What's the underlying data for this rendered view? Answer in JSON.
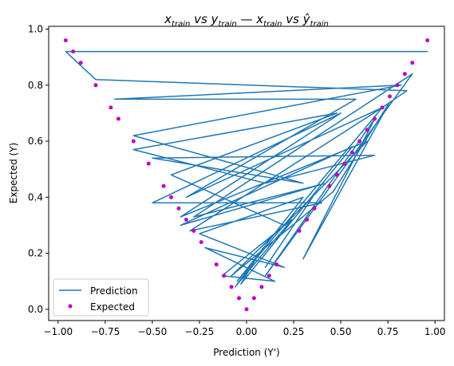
{
  "chart_data": {
    "type": "line",
    "title": {
      "base1": "x",
      "sub1": "train",
      "mid1": " vs y",
      "sub2": "train",
      "sep": "  —  ",
      "base3": "x",
      "sub3": "train",
      "mid2": " vs ",
      "yhat": "ŷ",
      "sub4": "train"
    },
    "xlabel": "Prediction (Y')",
    "ylabel": "Expected (Y)",
    "xlim": [
      -1.05,
      1.05
    ],
    "ylim": [
      -0.04,
      1.01
    ],
    "xticks": [
      -1.0,
      -0.75,
      -0.5,
      -0.25,
      0.0,
      0.25,
      0.5,
      0.75,
      1.0
    ],
    "xtick_labels": [
      "−1.00",
      "−0.75",
      "−0.50",
      "−0.25",
      "0.00",
      "0.25",
      "0.50",
      "0.75",
      "1.00"
    ],
    "yticks": [
      0.0,
      0.2,
      0.4,
      0.6,
      0.8,
      1.0
    ],
    "ytick_labels": [
      "0.0",
      "0.2",
      "0.4",
      "0.6",
      "0.8",
      "1.0"
    ],
    "legend": {
      "placement": "lower-left",
      "entries": [
        {
          "label": "Prediction",
          "kind": "line",
          "color": "#1f77b4"
        },
        {
          "label": "Expected",
          "kind": "marker",
          "color": "#bf00bf"
        }
      ]
    },
    "series": [
      {
        "name": "Prediction",
        "style": "line",
        "color": "#1f77b4",
        "x": [
          0.96,
          -0.96,
          -0.8,
          0.85,
          0.72,
          -0.32,
          0.58,
          -0.7,
          0.82,
          -0.6,
          0.3,
          -0.5,
          0.68,
          0.1,
          -0.6,
          0.48,
          -0.4,
          0.2,
          0.64,
          -0.35,
          0.5,
          -0.5,
          0.4,
          -0.3,
          0.72,
          -0.05,
          0.3,
          -0.25,
          0.2,
          -0.22,
          0.15,
          -0.13,
          0.24,
          -0.06,
          0.05,
          -0.03,
          0.56,
          -0.35,
          0.42,
          -0.28,
          0.88,
          0.1,
          0.68,
          0.3,
          0.76,
          0.46,
          -0.08,
          0.35,
          0.1
        ],
        "y": [
          0.92,
          0.92,
          0.82,
          0.78,
          0.72,
          0.4,
          0.75,
          0.75,
          0.8,
          0.62,
          0.45,
          0.54,
          0.55,
          0.45,
          0.57,
          0.7,
          0.48,
          0.3,
          0.6,
          0.33,
          0.7,
          0.38,
          0.38,
          0.28,
          0.72,
          0.1,
          0.4,
          0.27,
          0.15,
          0.22,
          0.1,
          0.12,
          0.32,
          0.08,
          0.18,
          0.09,
          0.58,
          0.3,
          0.45,
          0.33,
          0.84,
          0.12,
          0.68,
          0.18,
          0.74,
          0.42,
          0.12,
          0.4,
          0.15
        ]
      },
      {
        "name": "Expected",
        "style": "markers",
        "color": "#bf00bf",
        "x": [
          -0.96,
          -0.92,
          -0.88,
          -0.8,
          -0.72,
          -0.68,
          -0.6,
          -0.52,
          -0.44,
          -0.4,
          -0.36,
          -0.32,
          -0.28,
          -0.24,
          -0.16,
          -0.12,
          -0.08,
          -0.04,
          0.0,
          0.04,
          0.08,
          0.12,
          0.16,
          0.28,
          0.32,
          0.36,
          0.44,
          0.48,
          0.52,
          0.56,
          0.6,
          0.64,
          0.68,
          0.72,
          0.76,
          0.8,
          0.84,
          0.88,
          0.96
        ],
        "y": [
          0.96,
          0.92,
          0.88,
          0.8,
          0.72,
          0.68,
          0.6,
          0.52,
          0.44,
          0.4,
          0.36,
          0.32,
          0.28,
          0.24,
          0.16,
          0.12,
          0.08,
          0.04,
          0.0,
          0.04,
          0.08,
          0.12,
          0.16,
          0.28,
          0.32,
          0.36,
          0.44,
          0.48,
          0.52,
          0.56,
          0.6,
          0.64,
          0.68,
          0.72,
          0.76,
          0.8,
          0.84,
          0.88,
          0.96
        ]
      }
    ]
  }
}
